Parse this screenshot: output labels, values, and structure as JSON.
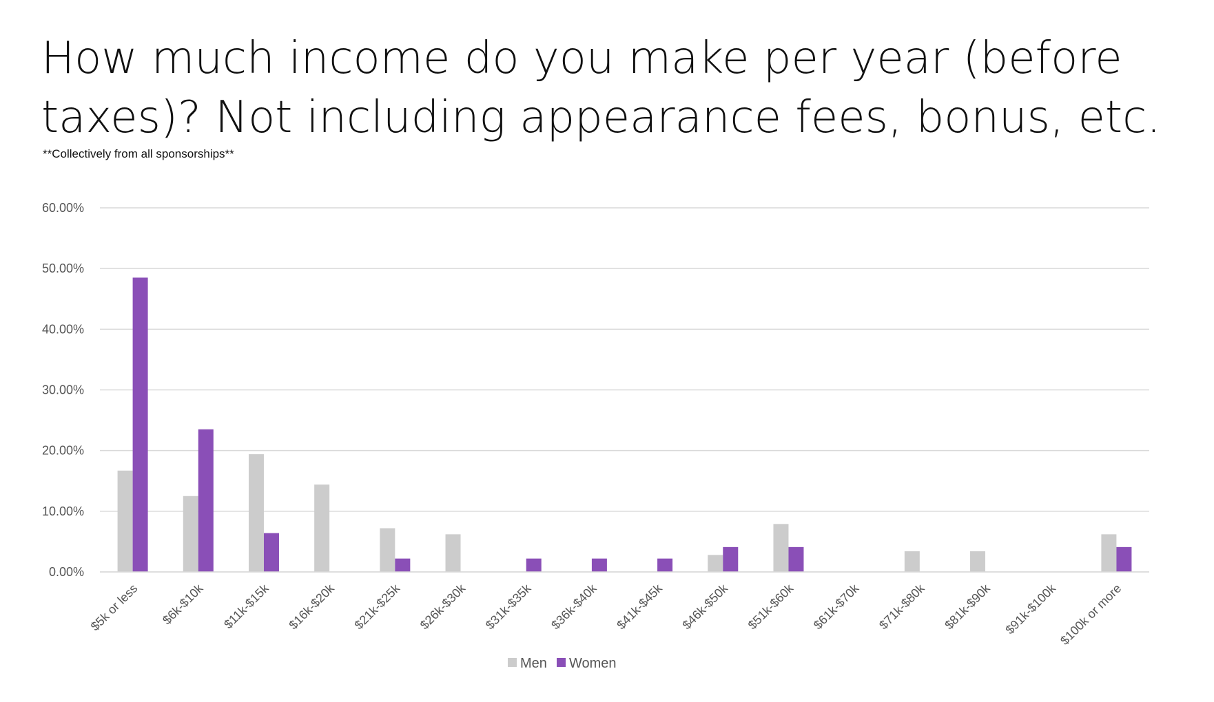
{
  "chart_data": {
    "type": "bar",
    "title": "How much income do you make per year (before taxes)? Not including appearance fees, bonus, etc.",
    "subtitle": "**Collectively from all sponsorships**",
    "xlabel": "",
    "ylabel": "",
    "ylim": [
      0,
      60
    ],
    "yticks": [
      "0.00%",
      "10.00%",
      "20.00%",
      "30.00%",
      "40.00%",
      "50.00%",
      "60.00%"
    ],
    "grid": true,
    "legend_position": "bottom",
    "categories": [
      "$5k or less",
      "$6k-$10k",
      "$11k-$15k",
      "$16k-$20k",
      "$21k-$25k",
      "$26k-$30k",
      "$31k-$35k",
      "$36k-$40k",
      "$41k-$45k",
      "$46k-$50k",
      "$51k-$60k",
      "$61k-$70k",
      "$71k-$80k",
      "$81k-$90k",
      "$91k-$100k",
      "$100k or more"
    ],
    "series": [
      {
        "name": "Men",
        "color": "#cccccc",
        "values": [
          16.7,
          12.5,
          19.4,
          14.4,
          7.2,
          6.2,
          0,
          0,
          0,
          2.8,
          7.9,
          0,
          3.4,
          3.4,
          0,
          6.2
        ]
      },
      {
        "name": "Women",
        "color": "#8a4fb7",
        "values": [
          48.5,
          23.5,
          6.4,
          0,
          2.2,
          0,
          2.2,
          2.2,
          2.2,
          4.1,
          4.1,
          0,
          0,
          0,
          0,
          4.1
        ]
      }
    ]
  }
}
